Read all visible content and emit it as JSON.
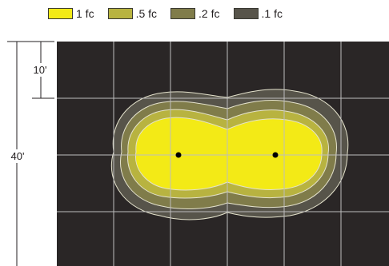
{
  "legend": [
    {
      "label": "1 fc",
      "color": "#f3ea16"
    },
    {
      "label": ".5 fc",
      "color": "#b8b340"
    },
    {
      "label": ".2 fc",
      "color": "#807c4a"
    },
    {
      "label": ".1 fc",
      "color": "#57544a"
    }
  ],
  "dimensions": {
    "grid_spacing_label": "10'",
    "total_height_label": "40'"
  },
  "colors": {
    "background": "#2a2626",
    "gridline": "#bdbdbd",
    "contour_stroke": "#e4e2cc",
    "fixture": "#000000"
  }
}
